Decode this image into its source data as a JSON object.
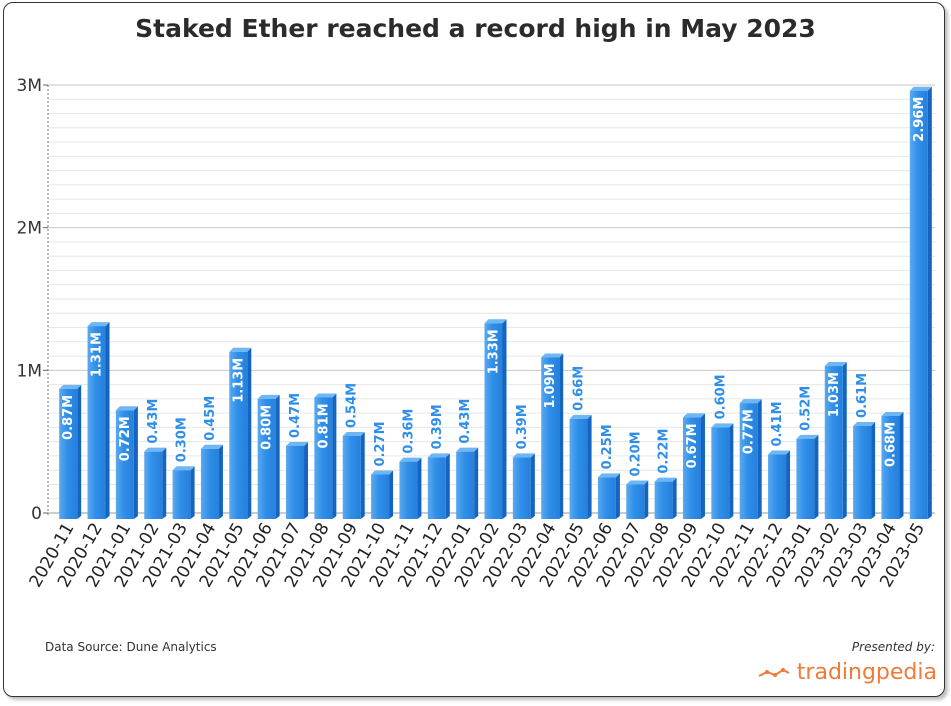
{
  "chart_data": {
    "type": "bar",
    "title": "Staked Ether reached a record high in May 2023",
    "xlabel": "",
    "ylabel": "",
    "ylim": [
      0,
      3000000
    ],
    "yticks": [
      {
        "value": 0,
        "label": "0"
      },
      {
        "value": 1000000,
        "label": "1M"
      },
      {
        "value": 2000000,
        "label": "2M"
      },
      {
        "value": 3000000,
        "label": "3M"
      }
    ],
    "grid": true,
    "bar_color": "#2f8fe8",
    "categories": [
      "2020-11",
      "2020-12",
      "2021-01",
      "2021-02",
      "2021-03",
      "2021-04",
      "2021-05",
      "2021-06",
      "2021-07",
      "2021-08",
      "2021-09",
      "2021-10",
      "2021-11",
      "2021-12",
      "2022-01",
      "2022-02",
      "2022-03",
      "2022-04",
      "2022-05",
      "2022-06",
      "2022-07",
      "2022-08",
      "2022-09",
      "2022-10",
      "2022-11",
      "2022-12",
      "2023-01",
      "2023-02",
      "2023-03",
      "2023-04",
      "2023-05"
    ],
    "values": [
      870000,
      1310000,
      720000,
      430000,
      300000,
      450000,
      1130000,
      800000,
      470000,
      810000,
      540000,
      270000,
      360000,
      390000,
      430000,
      1330000,
      390000,
      1090000,
      660000,
      250000,
      200000,
      220000,
      670000,
      600000,
      770000,
      410000,
      520000,
      1030000,
      610000,
      680000,
      2960000
    ],
    "data_labels": [
      "0.87M",
      "1.31M",
      "0.72M",
      "0.43M",
      "0.30M",
      "0.45M",
      "1.13M",
      "0.80M",
      "0.47M",
      "0.81M",
      "0.54M",
      "0.27M",
      "0.36M",
      "0.39M",
      "0.43M",
      "1.33M",
      "0.39M",
      "1.09M",
      "0.66M",
      "0.25M",
      "0.20M",
      "0.22M",
      "0.67M",
      "0.60M",
      "0.77M",
      "0.41M",
      "0.52M",
      "1.03M",
      "0.61M",
      "0.68M",
      "2.96M"
    ]
  },
  "footer": {
    "source": "Data Source: Dune Analytics",
    "presented_by": "Presented by:",
    "brand": "tradingpedia"
  },
  "colors": {
    "bar": "#2f8fe8",
    "bar_side": "#1565c0",
    "bar_top": "#6fb6f5",
    "inside_label": "#ffffff",
    "outside_label": "#2f8fe8",
    "brand": "#f07a3a"
  }
}
